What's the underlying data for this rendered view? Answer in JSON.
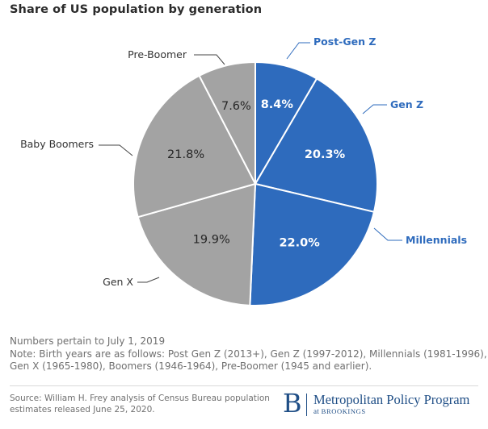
{
  "title": "Share of US population by generation",
  "chart_data": {
    "type": "pie",
    "title": "Share of US population by generation",
    "slices": [
      {
        "label": "Post-Gen Z",
        "value": 8.4,
        "value_label": "8.4%",
        "color": "#2e6bbd"
      },
      {
        "label": "Gen Z",
        "value": 20.3,
        "value_label": "20.3%",
        "color": "#2e6bbd"
      },
      {
        "label": "Millennials",
        "value": 22.0,
        "value_label": "22.0%",
        "color": "#2e6bbd"
      },
      {
        "label": "Gen X",
        "value": 19.9,
        "value_label": "19.9%",
        "color": "#a3a3a3"
      },
      {
        "label": "Baby Boomers",
        "value": 21.8,
        "value_label": "21.8%",
        "color": "#a3a3a3"
      },
      {
        "label": "Pre-Boomer",
        "value": 7.6,
        "value_label": "7.6%",
        "color": "#a3a3a3"
      }
    ],
    "start_angle_deg": 0,
    "direction": "clockwise"
  },
  "notes": {
    "line1": "Numbers pertain to July 1, 2019",
    "line2": "Note: Birth years are as follows: Post Gen Z (2013+), Gen Z (1997-2012), Millennials (1981-1996),",
    "line3": "Gen X (1965-1980), Boomers (1946-1964), Pre-Boomer (1945 and earlier)."
  },
  "source": {
    "line1": "Source: William H. Frey analysis of Census Bureau population",
    "line2": "estimates released June 25, 2020."
  },
  "logo": {
    "letter": "B",
    "name": "Metropolitan Policy Program",
    "sub_prefix": "at",
    "sub_org": "BROOKINGS"
  },
  "colors": {
    "blue": "#2e6bbd",
    "gray": "#a3a3a3",
    "blue_label": "#2e6bbd",
    "gray_label": "#333333"
  }
}
